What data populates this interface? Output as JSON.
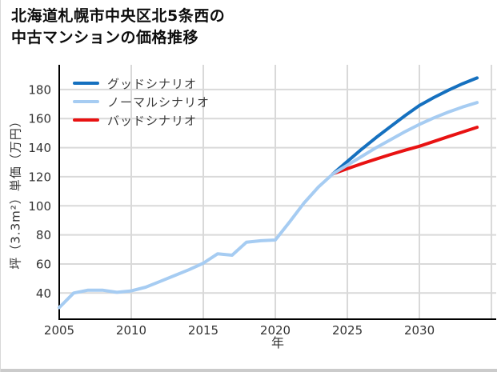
{
  "title": {
    "line1": "北海道札幌市中央区北5条西の",
    "line2": "中古マンションの価格推移"
  },
  "axes": {
    "x_label": "年",
    "y_label": "坪（3.3m²）単価（万円）"
  },
  "colors": {
    "good": "#1570bf",
    "normal": "#a6ccf2",
    "bad": "#e81212",
    "grid": "#d9d9d9",
    "axis": "#000000",
    "tick_text": "#333333"
  },
  "chart_data": {
    "type": "line",
    "title": "北海道札幌市中央区北5条西の中古マンションの価格推移",
    "xlabel": "年",
    "ylabel": "坪（3.3m²）単価（万円）",
    "xlim": [
      2005,
      2035.33
    ],
    "ylim": [
      22,
      197
    ],
    "x_ticks": [
      2005,
      2010,
      2015,
      2020,
      2025,
      2030
    ],
    "x_gridlines": [
      2010,
      2015,
      2020,
      2025,
      2030,
      2035
    ],
    "y_ticks": [
      40,
      60,
      80,
      100,
      120,
      140,
      160,
      180
    ],
    "grid": true,
    "legend_position": "upper-left",
    "series": [
      {
        "name": "グッドシナリオ",
        "color": "#1570bf",
        "x": [
          2024,
          2025,
          2026,
          2027,
          2028,
          2029,
          2030,
          2031,
          2032,
          2033,
          2034
        ],
        "y": [
          122,
          130.5,
          139,
          147,
          154.5,
          162,
          169,
          174.5,
          179.5,
          184,
          188
        ]
      },
      {
        "name": "ノーマルシナリオ",
        "color": "#a6ccf2",
        "x": [
          2005,
          2006,
          2007,
          2008,
          2009,
          2010,
          2011,
          2012,
          2013,
          2014,
          2015,
          2016,
          2017,
          2018,
          2019,
          2020,
          2021,
          2022,
          2023,
          2024,
          2025,
          2026,
          2027,
          2028,
          2029,
          2030,
          2031,
          2032,
          2033,
          2034
        ],
        "y": [
          30,
          40,
          42,
          42,
          40.5,
          41.5,
          44,
          48,
          52,
          56,
          60.5,
          67,
          66,
          75,
          76,
          76.5,
          89,
          102,
          113,
          122,
          128,
          134,
          140,
          145.5,
          151,
          156,
          160.5,
          164.5,
          168,
          171
        ]
      },
      {
        "name": "バッドシナリオ",
        "color": "#e81212",
        "x": [
          2024,
          2025,
          2026,
          2027,
          2028,
          2029,
          2030,
          2031,
          2032,
          2033,
          2034
        ],
        "y": [
          122,
          125.5,
          129,
          132.2,
          135.3,
          138.2,
          141,
          144.3,
          147.6,
          150.8,
          154
        ]
      }
    ]
  }
}
